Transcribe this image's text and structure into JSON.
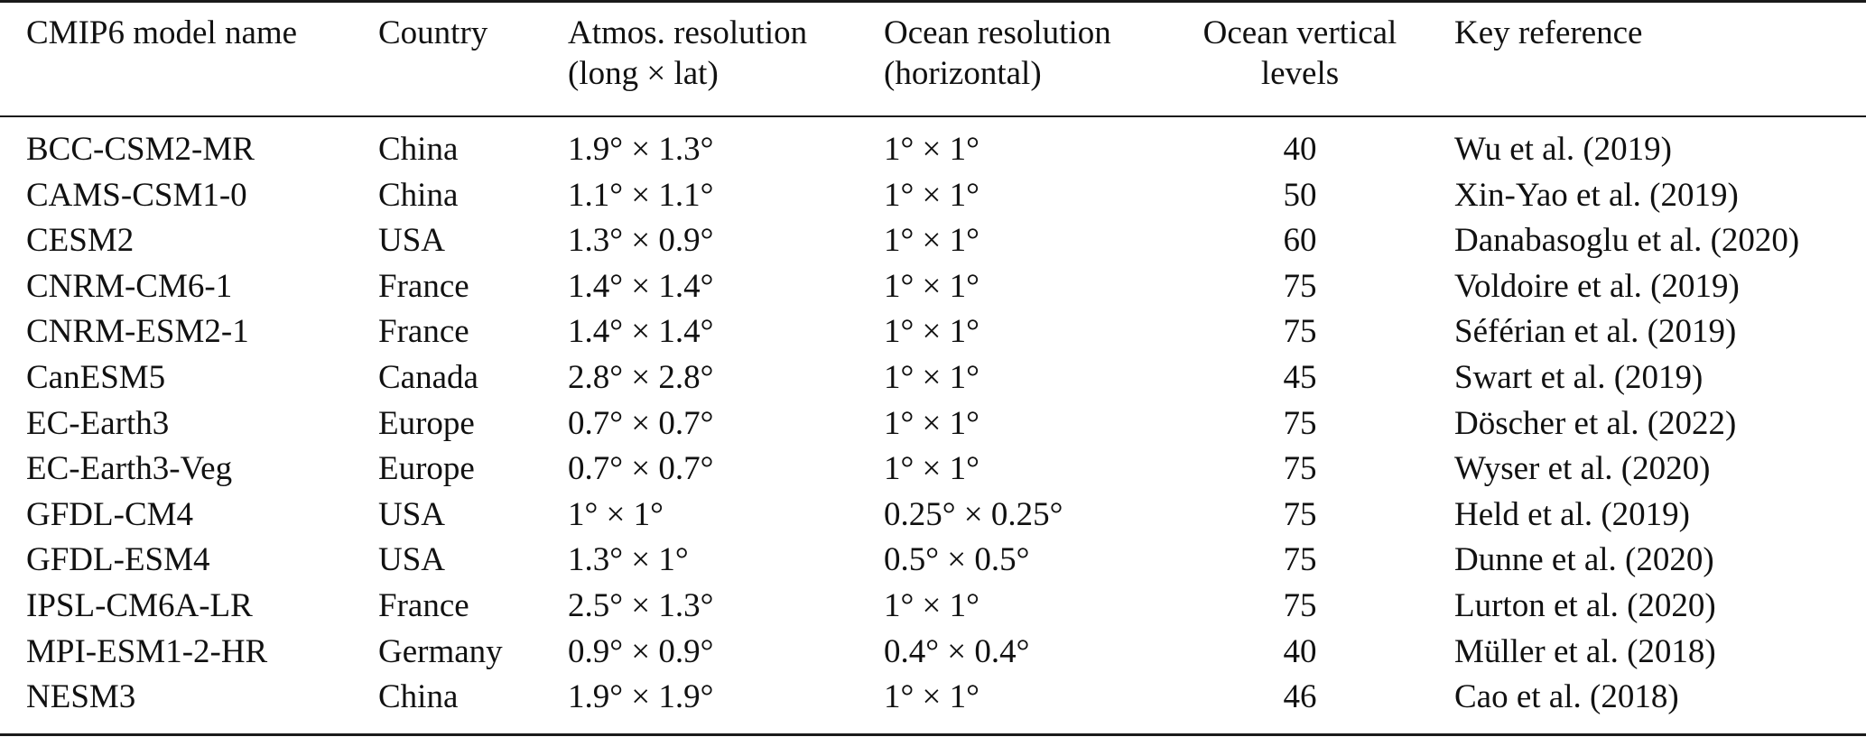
{
  "table": {
    "columns": [
      [
        "CMIP6 model name"
      ],
      [
        "Country"
      ],
      [
        "Atmos. resolution",
        "(long × lat)"
      ],
      [
        "Ocean resolution",
        "(horizontal)"
      ],
      [
        "Ocean vertical",
        "levels"
      ],
      [
        "Key reference"
      ]
    ],
    "rows": [
      [
        "BCC-CSM2-MR",
        "China",
        "1.9° × 1.3°",
        "1° × 1°",
        "40",
        "Wu et al. (2019)"
      ],
      [
        "CAMS-CSM1-0",
        "China",
        "1.1° × 1.1°",
        "1° × 1°",
        "50",
        "Xin-Yao et al. (2019)"
      ],
      [
        "CESM2",
        "USA",
        "1.3° × 0.9°",
        "1° × 1°",
        "60",
        "Danabasoglu et al. (2020)"
      ],
      [
        "CNRM-CM6-1",
        "France",
        "1.4° × 1.4°",
        "1° × 1°",
        "75",
        "Voldoire et al. (2019)"
      ],
      [
        "CNRM-ESM2-1",
        "France",
        "1.4° × 1.4°",
        "1° × 1°",
        "75",
        "Séférian et al. (2019)"
      ],
      [
        "CanESM5",
        "Canada",
        "2.8° × 2.8°",
        "1° × 1°",
        "45",
        "Swart et al. (2019)"
      ],
      [
        "EC-Earth3",
        "Europe",
        "0.7° × 0.7°",
        "1° × 1°",
        "75",
        "Döscher et al. (2022)"
      ],
      [
        "EC-Earth3-Veg",
        "Europe",
        "0.7° × 0.7°",
        "1° × 1°",
        "75",
        "Wyser et al. (2020)"
      ],
      [
        "GFDL-CM4",
        "USA",
        "1° × 1°",
        "0.25° × 0.25°",
        "75",
        "Held et al. (2019)"
      ],
      [
        "GFDL-ESM4",
        "USA",
        "1.3° × 1°",
        "0.5° × 0.5°",
        "75",
        "Dunne et al. (2020)"
      ],
      [
        "IPSL-CM6A-LR",
        "France",
        "2.5° × 1.3°",
        "1° × 1°",
        "75",
        "Lurton et al. (2020)"
      ],
      [
        "MPI-ESM1-2-HR",
        "Germany",
        "0.9° × 0.9°",
        "0.4° × 0.4°",
        "40",
        "Müller et al. (2018)"
      ],
      [
        "NESM3",
        "China",
        "1.9° × 1.9°",
        "1° × 1°",
        "46",
        "Cao et al. (2018)"
      ]
    ]
  }
}
